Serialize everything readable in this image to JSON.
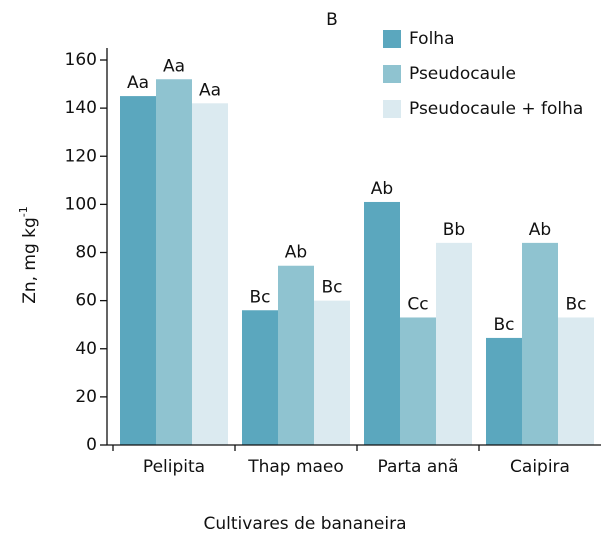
{
  "chart_data": {
    "type": "bar",
    "title": "B",
    "xlabel": "Cultivares de bananeira",
    "ylabel": "Zn, mg kg",
    "ylabel_sup": "-1",
    "categories": [
      "Pelipita",
      "Thap maeo",
      "Parta anã",
      "Caipira"
    ],
    "series": [
      {
        "name": "Folha",
        "color": "#5ba7be",
        "values": [
          145,
          56,
          101,
          44.5
        ],
        "labels": [
          "Aa",
          "Bc",
          "Ab",
          "Bc"
        ]
      },
      {
        "name": "Pseudocaule",
        "color": "#8fc3d0",
        "values": [
          152,
          74.5,
          53,
          84
        ],
        "labels": [
          "Aa",
          "Ab",
          "Cc",
          "Ab"
        ]
      },
      {
        "name": "Pseudocaule + folha",
        "color": "#dbeaf0",
        "values": [
          142,
          60,
          84,
          53
        ],
        "labels": [
          "Aa",
          "Bc",
          "Bb",
          "Bc"
        ]
      }
    ],
    "ylim": [
      0,
      160
    ],
    "yticks": [
      0,
      20,
      40,
      60,
      80,
      100,
      120,
      140,
      160
    ],
    "legend": "top-right"
  }
}
